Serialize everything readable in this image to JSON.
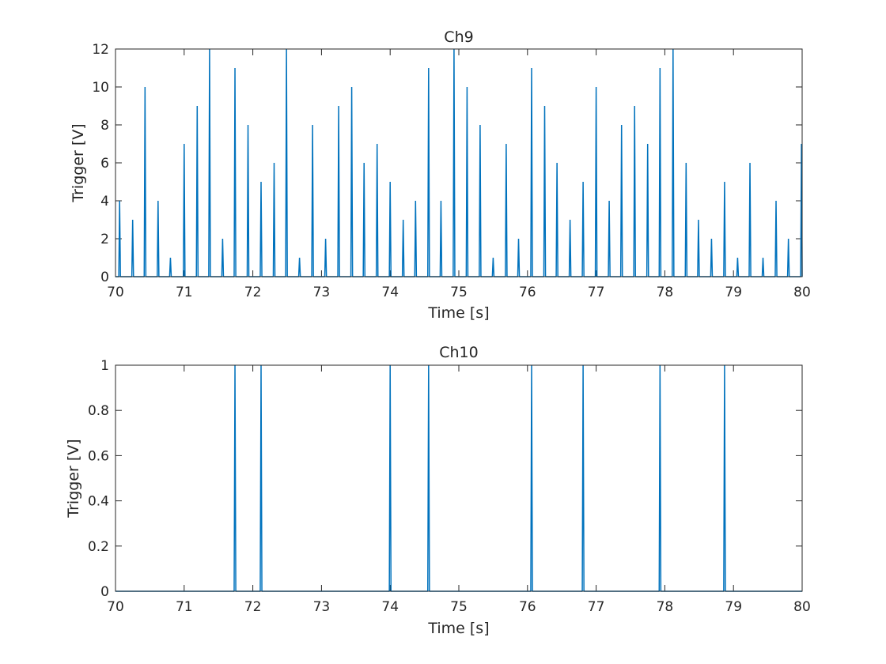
{
  "chart_data": [
    {
      "type": "line",
      "title": "Ch9",
      "xlabel": "Time [s]",
      "ylabel": "Trigger [V]",
      "xlim": [
        70,
        80
      ],
      "ylim": [
        0,
        12
      ],
      "x_ticks": [
        "70",
        "71",
        "72",
        "73",
        "74",
        "75",
        "76",
        "77",
        "78",
        "79",
        "80"
      ],
      "y_ticks": [
        "0",
        "2",
        "4",
        "6",
        "8",
        "10",
        "12"
      ],
      "grid": false,
      "color": "#0072BD",
      "series": [
        {
          "pulses": [
            {
              "t": 70.06,
              "v": 4
            },
            {
              "t": 70.25,
              "v": 3
            },
            {
              "t": 70.43,
              "v": 10
            },
            {
              "t": 70.62,
              "v": 4
            },
            {
              "t": 70.8,
              "v": 1
            },
            {
              "t": 71.0,
              "v": 7
            },
            {
              "t": 71.19,
              "v": 9
            },
            {
              "t": 71.37,
              "v": 12
            },
            {
              "t": 71.56,
              "v": 2
            },
            {
              "t": 71.74,
              "v": 11
            },
            {
              "t": 71.93,
              "v": 8
            },
            {
              "t": 72.12,
              "v": 5
            },
            {
              "t": 72.31,
              "v": 6
            },
            {
              "t": 72.49,
              "v": 12
            },
            {
              "t": 72.68,
              "v": 1
            },
            {
              "t": 72.87,
              "v": 8
            },
            {
              "t": 73.06,
              "v": 2
            },
            {
              "t": 73.25,
              "v": 9
            },
            {
              "t": 73.44,
              "v": 10
            },
            {
              "t": 73.62,
              "v": 6
            },
            {
              "t": 73.81,
              "v": 7
            },
            {
              "t": 74.0,
              "v": 5
            },
            {
              "t": 74.19,
              "v": 3
            },
            {
              "t": 74.37,
              "v": 4
            },
            {
              "t": 74.56,
              "v": 11
            },
            {
              "t": 74.74,
              "v": 4
            },
            {
              "t": 74.93,
              "v": 12
            },
            {
              "t": 75.12,
              "v": 10
            },
            {
              "t": 75.31,
              "v": 8
            },
            {
              "t": 75.5,
              "v": 1
            },
            {
              "t": 75.69,
              "v": 7
            },
            {
              "t": 75.87,
              "v": 2
            },
            {
              "t": 76.06,
              "v": 11
            },
            {
              "t": 76.25,
              "v": 9
            },
            {
              "t": 76.43,
              "v": 6
            },
            {
              "t": 76.62,
              "v": 3
            },
            {
              "t": 76.81,
              "v": 5
            },
            {
              "t": 77.0,
              "v": 10
            },
            {
              "t": 77.19,
              "v": 4
            },
            {
              "t": 77.37,
              "v": 8
            },
            {
              "t": 77.56,
              "v": 9
            },
            {
              "t": 77.75,
              "v": 7
            },
            {
              "t": 77.93,
              "v": 11
            },
            {
              "t": 78.12,
              "v": 12
            },
            {
              "t": 78.31,
              "v": 6
            },
            {
              "t": 78.49,
              "v": 3
            },
            {
              "t": 78.68,
              "v": 2
            },
            {
              "t": 78.87,
              "v": 5
            },
            {
              "t": 79.06,
              "v": 1
            },
            {
              "t": 79.24,
              "v": 6
            },
            {
              "t": 79.43,
              "v": 1
            },
            {
              "t": 79.62,
              "v": 4
            },
            {
              "t": 79.8,
              "v": 2
            },
            {
              "t": 79.99,
              "v": 7
            }
          ]
        }
      ]
    },
    {
      "type": "line",
      "title": "Ch10",
      "xlabel": "Time [s]",
      "ylabel": "Trigger [V]",
      "xlim": [
        70,
        80
      ],
      "ylim": [
        0,
        1
      ],
      "x_ticks": [
        "70",
        "71",
        "72",
        "73",
        "74",
        "75",
        "76",
        "77",
        "78",
        "79",
        "80"
      ],
      "y_ticks": [
        "0",
        "0.2",
        "0.4",
        "0.6",
        "0.8",
        "1"
      ],
      "grid": false,
      "color": "#0072BD",
      "series": [
        {
          "pulses": [
            {
              "t": 71.74,
              "v": 1
            },
            {
              "t": 72.12,
              "v": 1
            },
            {
              "t": 74.0,
              "v": 1
            },
            {
              "t": 74.56,
              "v": 1
            },
            {
              "t": 76.06,
              "v": 1
            },
            {
              "t": 76.81,
              "v": 1
            },
            {
              "t": 77.93,
              "v": 1
            },
            {
              "t": 78.87,
              "v": 1
            }
          ]
        }
      ]
    }
  ]
}
